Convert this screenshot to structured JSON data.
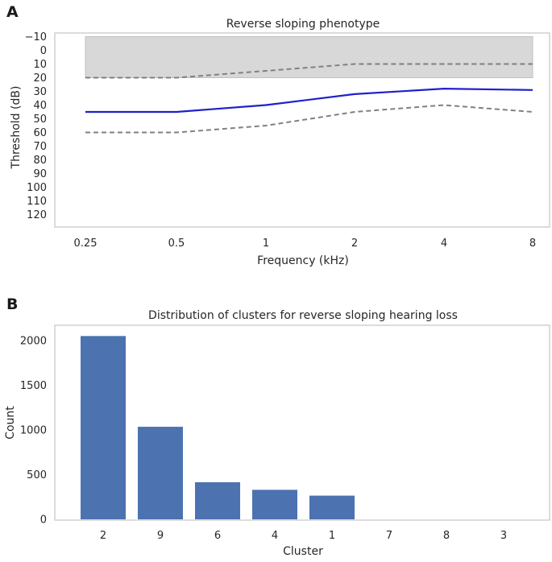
{
  "figure": {
    "background": "#ffffff"
  },
  "panels": [
    {
      "letter": "A"
    },
    {
      "letter": "B"
    }
  ],
  "chart_data": [
    {
      "type": "line",
      "title": "Reverse sloping phenotype",
      "xlabel": "Frequency (kHz)",
      "ylabel": "Threshold (dB)",
      "x_scale": "log",
      "y_inverted": true,
      "grid": false,
      "ylim": [
        -10,
        130
      ],
      "x": [
        "0.25",
        "0.5",
        "1",
        "2",
        "4",
        "8"
      ],
      "ytick_labels": [
        "−10",
        "0",
        "10",
        "20",
        "30",
        "40",
        "50",
        "60",
        "70",
        "80",
        "90",
        "100",
        "110",
        "120"
      ],
      "ytick_values": [
        -10,
        0,
        10,
        20,
        30,
        40,
        50,
        60,
        70,
        80,
        90,
        100,
        110,
        120
      ],
      "normal_band": {
        "from": -10,
        "to": 20,
        "color": "#d6d6d6"
      },
      "series": [
        {
          "style": "solid",
          "color": "#1f1fcc",
          "values": [
            45,
            45,
            40,
            32,
            28,
            29
          ]
        },
        {
          "style": "dashed",
          "color": "#808080",
          "values": [
            20,
            20,
            15,
            10,
            10,
            10
          ]
        },
        {
          "style": "dashed",
          "color": "#808080",
          "values": [
            60,
            60,
            55,
            45,
            40,
            45
          ]
        }
      ]
    },
    {
      "type": "bar",
      "title": "Distribution of clusters for reverse sloping hearing loss",
      "xlabel": "Cluster",
      "ylabel": "Count",
      "grid": false,
      "ylim": [
        0,
        2170
      ],
      "categories": [
        "2",
        "9",
        "6",
        "4",
        "1",
        "7",
        "8",
        "3"
      ],
      "values": [
        2050,
        1035,
        415,
        330,
        265,
        0,
        0,
        0
      ],
      "ytick_values": [
        0,
        500,
        1000,
        1500,
        2000
      ],
      "ytick_labels": [
        "0",
        "500",
        "1000",
        "1500",
        "2000"
      ],
      "bar_color": "#4c72b0"
    }
  ]
}
